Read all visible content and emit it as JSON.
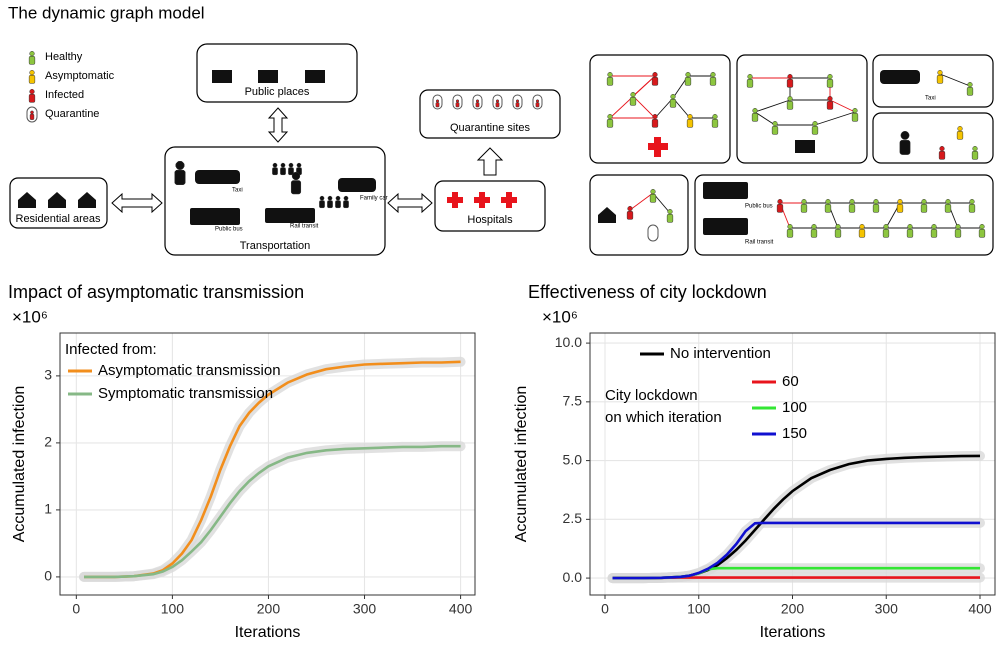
{
  "diagram": {
    "title": "The dynamic graph model",
    "legend": [
      "Healthy",
      "Asymptomatic",
      "Infected",
      "Quarantine"
    ],
    "boxes": {
      "residential": "Residential areas",
      "transportation": "Transportation",
      "public": "Public places",
      "hospitals": "Hospitals",
      "quarantine": "Quarantine sites"
    },
    "vehicles": [
      "Taxi",
      "Public bus",
      "Rail transit",
      "Family car"
    ],
    "panel_labels": [
      "Taxi",
      "Public bus",
      "Rail transit"
    ]
  },
  "chart_data": [
    {
      "type": "line",
      "title": "Impact of asymptomatic transmission",
      "multiplier": "×10⁶",
      "xlabel": "Iterations",
      "ylabel": "Accumulated infection",
      "x": [
        8,
        20,
        40,
        60,
        80,
        90,
        100,
        110,
        120,
        130,
        140,
        150,
        160,
        170,
        180,
        190,
        200,
        220,
        240,
        260,
        280,
        300,
        320,
        340,
        360,
        380,
        400
      ],
      "xlim": [
        -17,
        415
      ],
      "xticks": [
        0,
        100,
        200,
        300,
        400
      ],
      "ylim": [
        -0.27,
        3.64
      ],
      "yticks": [
        0,
        1,
        2,
        3
      ],
      "grid": true,
      "legend_title": [
        "Infected from:"
      ],
      "series": [
        {
          "name": "Asymptomatic transmission",
          "color": "#f28e1c",
          "values": [
            0,
            0,
            0,
            0.01,
            0.05,
            0.1,
            0.2,
            0.35,
            0.55,
            0.85,
            1.2,
            1.6,
            1.95,
            2.25,
            2.45,
            2.6,
            2.72,
            2.9,
            3.02,
            3.1,
            3.14,
            3.17,
            3.18,
            3.19,
            3.2,
            3.2,
            3.21
          ]
        },
        {
          "name": "Symptomatic transmission",
          "color": "#86b886",
          "values": [
            0,
            0,
            0,
            0.01,
            0.04,
            0.08,
            0.15,
            0.25,
            0.38,
            0.52,
            0.7,
            0.9,
            1.1,
            1.28,
            1.43,
            1.55,
            1.65,
            1.78,
            1.85,
            1.89,
            1.91,
            1.92,
            1.93,
            1.94,
            1.94,
            1.95,
            1.95
          ]
        }
      ]
    },
    {
      "type": "line",
      "title": "Effectiveness of city lockdown",
      "multiplier": "×10⁶",
      "xlabel": "Iterations",
      "ylabel": "Accumulated infection",
      "x": [
        8,
        20,
        40,
        60,
        80,
        90,
        100,
        110,
        120,
        130,
        140,
        150,
        160,
        170,
        180,
        190,
        200,
        220,
        240,
        260,
        280,
        300,
        320,
        340,
        360,
        380,
        400
      ],
      "xlim": [
        -16,
        416
      ],
      "xticks": [
        0,
        100,
        200,
        300,
        400
      ],
      "ylim": [
        -0.72,
        10.43
      ],
      "yticks": [
        {
          "value": 0,
          "label": "0.0"
        },
        2.5,
        {
          "value": 5,
          "label": "5.0"
        },
        7.5,
        {
          "value": 10,
          "label": "10.0"
        }
      ],
      "grid": true,
      "legend_title": [
        "City lockdown",
        "on which iteration"
      ],
      "series": [
        {
          "name": "No intervention",
          "color": "#000000",
          "values": [
            0,
            0,
            0,
            0.01,
            0.05,
            0.1,
            0.2,
            0.35,
            0.55,
            0.85,
            1.2,
            1.6,
            2.05,
            2.5,
            2.95,
            3.35,
            3.7,
            4.25,
            4.6,
            4.85,
            5.0,
            5.07,
            5.12,
            5.15,
            5.17,
            5.19,
            5.2
          ]
        },
        {
          "name": "60",
          "color": "#e8141c",
          "values": [
            0,
            0,
            0,
            0.01,
            0.02,
            0.02,
            0.02,
            0.02,
            0.02,
            0.02,
            0.02,
            0.02,
            0.02,
            0.02,
            0.02,
            0.02,
            0.02,
            0.02,
            0.02,
            0.02,
            0.02,
            0.02,
            0.02,
            0.02,
            0.02,
            0.02,
            0.02
          ]
        },
        {
          "name": "100",
          "color": "#33e633",
          "values": [
            0,
            0,
            0,
            0.01,
            0.05,
            0.1,
            0.2,
            0.38,
            0.42,
            0.42,
            0.42,
            0.42,
            0.42,
            0.42,
            0.42,
            0.42,
            0.42,
            0.42,
            0.42,
            0.42,
            0.42,
            0.42,
            0.42,
            0.42,
            0.42,
            0.42,
            0.42
          ]
        },
        {
          "name": "150",
          "color": "#1010d0",
          "values": [
            0,
            0,
            0,
            0.01,
            0.05,
            0.1,
            0.22,
            0.4,
            0.65,
            1.0,
            1.45,
            2.0,
            2.33,
            2.35,
            2.35,
            2.35,
            2.35,
            2.35,
            2.35,
            2.35,
            2.35,
            2.35,
            2.35,
            2.35,
            2.35,
            2.35,
            2.35
          ]
        }
      ]
    }
  ]
}
